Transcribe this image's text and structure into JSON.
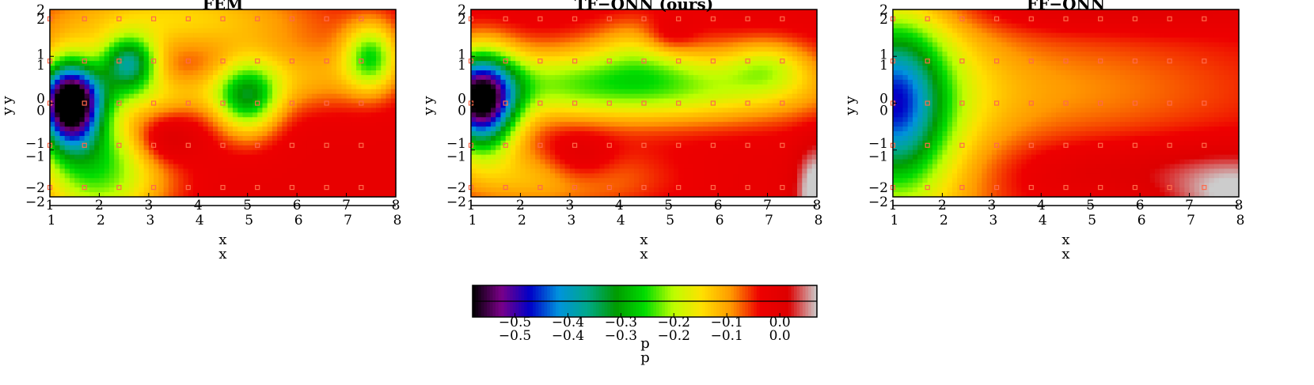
{
  "chart_data": [
    {
      "type": "heatmap",
      "title": "FEM",
      "xlabel": "x",
      "ylabel": "y",
      "xlim": [
        1,
        8
      ],
      "ylim": [
        -2,
        2
      ],
      "xticks": [
        "1",
        "2",
        "3",
        "4",
        "5",
        "6",
        "7",
        "8"
      ],
      "yticks": [
        "-2",
        "-1",
        "0",
        "1",
        "2"
      ],
      "base": -0.02,
      "blobs": [
        {
          "x": 1.4,
          "y": 0.0,
          "sx": 0.45,
          "sy": 0.65,
          "a": -0.58
        },
        {
          "x": 2.6,
          "y": 0.85,
          "sx": 0.4,
          "sy": 0.4,
          "a": -0.3
        },
        {
          "x": 5.0,
          "y": 0.1,
          "sx": 0.45,
          "sy": 0.55,
          "a": -0.23
        },
        {
          "x": 7.5,
          "y": 1.0,
          "sx": 0.38,
          "sy": 0.5,
          "a": -0.2
        },
        {
          "x": 3.5,
          "y": 1.8,
          "sx": 2.0,
          "sy": 0.55,
          "a": -0.12
        },
        {
          "x": 3.0,
          "y": 0.2,
          "sx": 1.5,
          "sy": 0.35,
          "a": -0.09
        },
        {
          "x": 6.2,
          "y": 0.6,
          "sx": 1.2,
          "sy": 0.5,
          "a": -0.08
        },
        {
          "x": 2.0,
          "y": -1.4,
          "sx": 0.9,
          "sy": 0.9,
          "a": -0.22
        },
        {
          "x": 3.3,
          "y": -0.8,
          "sx": 0.45,
          "sy": 0.35,
          "a": 0.08
        }
      ],
      "sensors": {
        "x": [
          1.0,
          1.7,
          2.4,
          3.1,
          3.8,
          4.5,
          5.2,
          5.9,
          6.6,
          7.3
        ],
        "y": [
          1.8,
          0.9,
          0.0,
          -0.9,
          -1.8
        ]
      }
    },
    {
      "type": "heatmap",
      "title": "TF-ONN (ours)",
      "xlabel": "x",
      "ylabel": "y",
      "xlim": [
        1,
        8
      ],
      "ylim": [
        -2,
        2
      ],
      "xticks": [
        "1",
        "2",
        "3",
        "4",
        "5",
        "6",
        "7",
        "8"
      ],
      "yticks": [
        "-2",
        "-1",
        "0",
        "1",
        "2"
      ],
      "base": -0.02,
      "blobs": [
        {
          "x": 1.2,
          "y": 0.0,
          "sx": 0.5,
          "sy": 0.7,
          "a": -0.52
        },
        {
          "x": 3.5,
          "y": 0.45,
          "sx": 2.5,
          "sy": 0.55,
          "a": -0.17
        },
        {
          "x": 7.0,
          "y": 0.8,
          "sx": 0.6,
          "sy": 0.4,
          "a": -0.1
        },
        {
          "x": 5.5,
          "y": 0.2,
          "sx": 2.5,
          "sy": 0.5,
          "a": -0.07
        },
        {
          "x": 4.5,
          "y": 1.2,
          "sx": 0.7,
          "sy": 0.5,
          "a": -0.08
        },
        {
          "x": 2.5,
          "y": -1.6,
          "sx": 1.5,
          "sy": 0.5,
          "a": -0.1
        },
        {
          "x": 5.0,
          "y": 1.4,
          "sx": 0.4,
          "sy": 0.3,
          "a": 0.07
        },
        {
          "x": 3.2,
          "y": -1.2,
          "sx": 0.5,
          "sy": 0.4,
          "a": 0.07
        },
        {
          "x": 8.0,
          "y": -1.9,
          "sx": 0.3,
          "sy": 0.7,
          "a": 0.12
        }
      ],
      "sensors": {
        "x": [
          1.0,
          1.7,
          2.4,
          3.1,
          3.8,
          4.5,
          5.2,
          5.9,
          6.6,
          7.3
        ],
        "y": [
          1.8,
          0.9,
          0.0,
          -0.9,
          -1.8
        ]
      }
    },
    {
      "type": "heatmap",
      "title": "FF-ONN",
      "xlabel": "x",
      "ylabel": "y",
      "xlim": [
        1,
        8
      ],
      "ylim": [
        -2,
        2
      ],
      "xticks": [
        "1",
        "2",
        "3",
        "4",
        "5",
        "6",
        "7",
        "8"
      ],
      "yticks": [
        "-2",
        "-1",
        "0",
        "1",
        "2"
      ],
      "base": -0.03,
      "blobs": [
        {
          "x": 1.0,
          "y": 0.0,
          "sx": 0.7,
          "sy": 1.2,
          "a": -0.3
        },
        {
          "x": 1.4,
          "y": -0.5,
          "sx": 1.2,
          "sy": 2.5,
          "a": -0.12
        },
        {
          "x": 4.0,
          "y": 0.3,
          "sx": 3.0,
          "sy": 0.9,
          "a": -0.06
        },
        {
          "x": 6.0,
          "y": -1.4,
          "sx": 2.0,
          "sy": 0.45,
          "a": 0.04
        },
        {
          "x": 5.0,
          "y": 2.0,
          "sx": 3.0,
          "sy": 0.35,
          "a": 0.04
        },
        {
          "x": 8.0,
          "y": -2.0,
          "sx": 1.0,
          "sy": 0.6,
          "a": 0.1
        }
      ],
      "sensors": {
        "x": [
          1.0,
          1.7,
          2.4,
          3.1,
          3.8,
          4.5,
          5.2,
          5.9,
          6.6,
          7.3
        ],
        "y": [
          1.8,
          0.9,
          0.0,
          -0.9,
          -1.8
        ]
      }
    }
  ],
  "colorbar": {
    "label": "p",
    "range": [
      -0.58,
      0.07
    ],
    "ticks": [
      "-0.5",
      "-0.4",
      "-0.3",
      "-0.2",
      "-0.1",
      "0.0"
    ],
    "tick_values": [
      -0.5,
      -0.4,
      -0.3,
      -0.2,
      -0.1,
      0.0
    ],
    "colormap": "nipy_spectral",
    "stops": [
      "#000000",
      "#7a0088",
      "#0000c8",
      "#0093dd",
      "#00a88a",
      "#009b00",
      "#00dc00",
      "#bdfe00",
      "#ffe000",
      "#ff9900",
      "#ee0000",
      "#dd0000",
      "#cccccc"
    ]
  },
  "sensor_color": "#ff6a4a"
}
